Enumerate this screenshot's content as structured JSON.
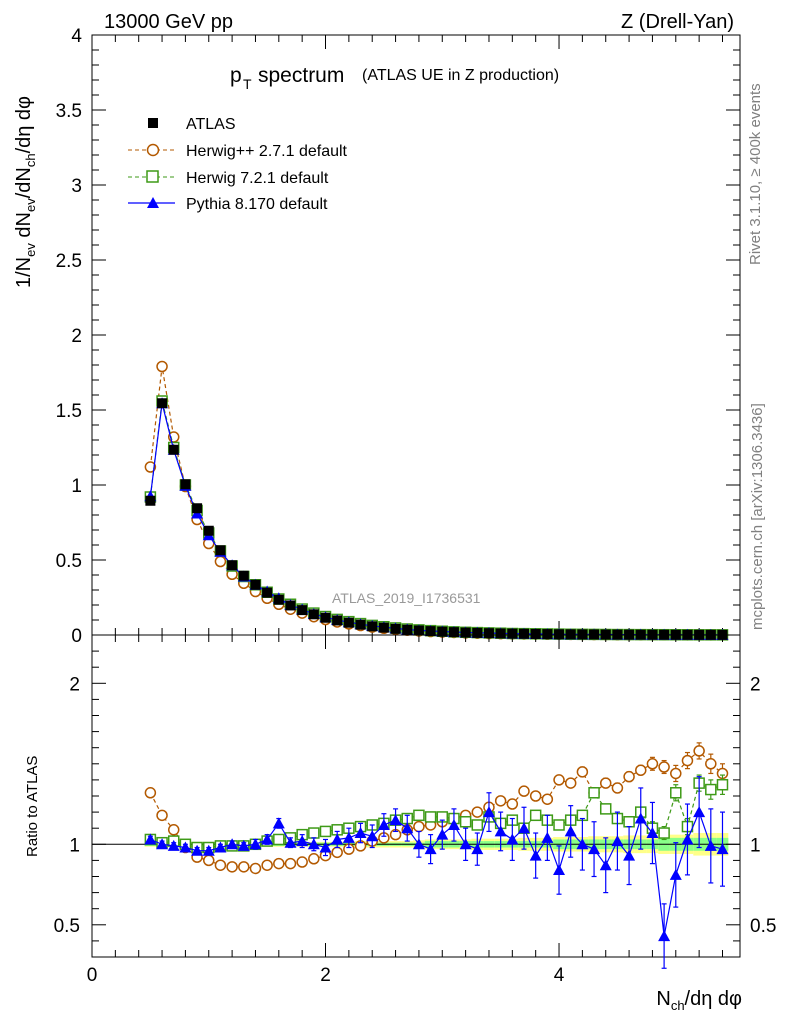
{
  "header": {
    "left": "13000 GeV pp",
    "right": "Z (Drell-Yan)"
  },
  "side_labels": {
    "rivet": "Rivet 3.1.10, ≥ 400k events",
    "mcplots": "mcplots.cern.ch [arXiv:1306.3436]"
  },
  "colors": {
    "atlas": "#000000",
    "herwigpp": "#b35900",
    "herwig7": "#3e9a17",
    "pythia": "#0000ff",
    "band_inner": "#88ff88",
    "band_outer": "#ffff88"
  },
  "chart_data": [
    {
      "type": "scatter",
      "title_main": "p",
      "title_sub": "T",
      "title_word": "spectrum",
      "title_extra": "(ATLAS UE in Z production)",
      "ylabel": "1/N_ev dN_ev/dN_ch/dη dφ",
      "ylabel_parts": [
        "1/N",
        "ev",
        " dN",
        "ev",
        "/dN",
        "ch",
        "/dη dφ"
      ],
      "watermark": "ATLAS_2019_I1736531",
      "xlim": [
        0,
        5.55
      ],
      "ylim": [
        0,
        4
      ],
      "y_ticks": [
        "0",
        "0.5",
        "1",
        "1.5",
        "2",
        "2.5",
        "3",
        "3.5",
        "4"
      ],
      "x_ticks": [],
      "legend_position": "top-left",
      "x": [
        0.5,
        0.6,
        0.7,
        0.8,
        0.9,
        1.0,
        1.1,
        1.2,
        1.3,
        1.4,
        1.5,
        1.6,
        1.7,
        1.8,
        1.9,
        2.0,
        2.1,
        2.2,
        2.3,
        2.4,
        2.5,
        2.6,
        2.7,
        2.8,
        2.9,
        3.0,
        3.1,
        3.2,
        3.3,
        3.4,
        3.5,
        3.6,
        3.7,
        3.8,
        3.9,
        4.0,
        4.1,
        4.2,
        4.3,
        4.4,
        4.5,
        4.6,
        4.7,
        4.8,
        4.9,
        5.0,
        5.1,
        5.2,
        5.3,
        5.4
      ],
      "series": [
        {
          "name": "ATLAS",
          "marker": "square-filled",
          "values": [
            0.895,
            1.545,
            1.235,
            1.005,
            0.845,
            0.695,
            0.565,
            0.465,
            0.395,
            0.335,
            0.282,
            0.235,
            0.197,
            0.166,
            0.138,
            0.115,
            0.097,
            0.082,
            0.069,
            0.058,
            0.049,
            0.041,
            0.035,
            0.03,
            0.026,
            0.022,
            0.019,
            0.016,
            0.014,
            0.012,
            0.01,
            0.009,
            0.008,
            0.007,
            0.006,
            0.005,
            0.0045,
            0.004,
            0.0035,
            0.003,
            0.0027,
            0.0024,
            0.0021,
            0.0019,
            0.0017,
            0.0015,
            0.0013,
            0.0012,
            0.0011,
            0.001
          ]
        },
        {
          "name": "Herwig++ 2.7.1 default",
          "marker": "circle-open",
          "line": "dashed",
          "values": [
            1.12,
            1.79,
            1.32,
            0.99,
            0.77,
            0.61,
            0.49,
            0.405,
            0.345,
            0.29,
            0.245,
            0.205,
            0.172,
            0.146,
            0.122,
            0.103,
            0.087,
            0.074,
            0.063,
            0.053,
            0.045,
            0.038,
            0.032,
            0.027,
            0.023,
            0.02,
            0.017,
            0.014,
            0.012,
            0.01,
            0.009,
            0.008,
            0.007,
            0.006,
            0.005,
            0.0045,
            0.004,
            0.0035,
            0.003,
            0.0027,
            0.0024,
            0.0021,
            0.0019,
            0.0017,
            0.0015,
            0.0013,
            0.0012,
            0.0011,
            0.001,
            0.0009
          ]
        },
        {
          "name": "Herwig 7.2.1 default",
          "marker": "square-open",
          "line": "dashed",
          "values": [
            0.92,
            1.56,
            1.25,
            1.0,
            0.83,
            0.68,
            0.56,
            0.46,
            0.39,
            0.335,
            0.285,
            0.24,
            0.205,
            0.173,
            0.146,
            0.123,
            0.104,
            0.089,
            0.076,
            0.064,
            0.055,
            0.047,
            0.04,
            0.034,
            0.029,
            0.025,
            0.021,
            0.018,
            0.016,
            0.014,
            0.012,
            0.01,
            0.009,
            0.008,
            0.007,
            0.006,
            0.005,
            0.0045,
            0.004,
            0.0035,
            0.003,
            0.0027,
            0.0024,
            0.0021,
            0.0019,
            0.0017,
            0.0015,
            0.0013,
            0.0012,
            0.0011
          ]
        },
        {
          "name": "Pythia 8.170 default",
          "marker": "triangle-filled",
          "line": "solid",
          "values": [
            0.925,
            1.545,
            1.235,
            0.995,
            0.81,
            0.665,
            0.555,
            0.465,
            0.39,
            0.335,
            0.29,
            0.245,
            0.2,
            0.17,
            0.14,
            0.118,
            0.1,
            0.085,
            0.072,
            0.061,
            0.052,
            0.044,
            0.037,
            0.031,
            0.027,
            0.023,
            0.02,
            0.017,
            0.015,
            0.013,
            0.011,
            0.009,
            0.008,
            0.007,
            0.006,
            0.005,
            0.0045,
            0.004,
            0.0035,
            0.003,
            0.0027,
            0.0024,
            0.0021,
            0.0019,
            0.0017,
            0.0015,
            0.0013,
            0.0012,
            0.0011,
            0.001
          ]
        }
      ]
    },
    {
      "type": "scatter",
      "ylabel": "Ratio to ATLAS",
      "xlabel_parts": [
        "N",
        "ch",
        "/dη dφ"
      ],
      "xlim": [
        0,
        5.55
      ],
      "ylim": [
        0.3,
        2.3
      ],
      "x_ticks": [
        "0",
        "2",
        "4"
      ],
      "x_tick_values": [
        0,
        2,
        4
      ],
      "y_ticks": [
        "0.5",
        "1",
        "2"
      ],
      "y_tick_values": [
        0.5,
        1,
        2
      ],
      "x": [
        0.5,
        0.6,
        0.7,
        0.8,
        0.9,
        1.0,
        1.1,
        1.2,
        1.3,
        1.4,
        1.5,
        1.6,
        1.7,
        1.8,
        1.9,
        2.0,
        2.1,
        2.2,
        2.3,
        2.4,
        2.5,
        2.6,
        2.7,
        2.8,
        2.9,
        3.0,
        3.1,
        3.2,
        3.3,
        3.4,
        3.5,
        3.6,
        3.7,
        3.8,
        3.9,
        4.0,
        4.1,
        4.2,
        4.3,
        4.4,
        4.5,
        4.6,
        4.7,
        4.8,
        4.9,
        5.0,
        5.1,
        5.2,
        5.3,
        5.4
      ],
      "band_inner": [
        0.01,
        0.01,
        0.01,
        0.01,
        0.01,
        0.01,
        0.01,
        0.01,
        0.01,
        0.01,
        0.01,
        0.01,
        0.01,
        0.01,
        0.01,
        0.01,
        0.01,
        0.01,
        0.01,
        0.01,
        0.01,
        0.01,
        0.01,
        0.01,
        0.02,
        0.02,
        0.02,
        0.02,
        0.02,
        0.02,
        0.02,
        0.02,
        0.02,
        0.02,
        0.02,
        0.03,
        0.03,
        0.03,
        0.03,
        0.03,
        0.03,
        0.03,
        0.03,
        0.03,
        0.04,
        0.04,
        0.04,
        0.04,
        0.04,
        0.04
      ],
      "band_outer": [
        0.015,
        0.015,
        0.015,
        0.015,
        0.015,
        0.015,
        0.015,
        0.015,
        0.015,
        0.015,
        0.015,
        0.015,
        0.015,
        0.015,
        0.015,
        0.015,
        0.015,
        0.015,
        0.02,
        0.02,
        0.02,
        0.02,
        0.02,
        0.025,
        0.03,
        0.03,
        0.03,
        0.03,
        0.035,
        0.035,
        0.035,
        0.035,
        0.04,
        0.04,
        0.04,
        0.045,
        0.045,
        0.045,
        0.05,
        0.05,
        0.05,
        0.055,
        0.055,
        0.055,
        0.06,
        0.06,
        0.06,
        0.07,
        0.07,
        0.07
      ],
      "series": [
        {
          "name": "Herwig++ 2.7.1 default",
          "marker": "circle-open",
          "line": "dashed",
          "values": [
            1.32,
            1.18,
            1.09,
            0.98,
            0.92,
            0.9,
            0.87,
            0.86,
            0.86,
            0.85,
            0.87,
            0.88,
            0.88,
            0.89,
            0.91,
            0.93,
            0.95,
            0.97,
            0.99,
            1.02,
            1.04,
            1.06,
            1.09,
            1.11,
            1.12,
            1.14,
            1.16,
            1.18,
            1.2,
            1.23,
            1.27,
            1.25,
            1.33,
            1.3,
            1.28,
            1.4,
            1.38,
            1.45,
            1.32,
            1.38,
            1.35,
            1.42,
            1.46,
            1.5,
            1.48,
            1.44,
            1.52,
            1.58,
            1.5,
            1.44
          ],
          "errors": [
            0.01,
            0.01,
            0.01,
            0.01,
            0.01,
            0.01,
            0.01,
            0.01,
            0.01,
            0.01,
            0.01,
            0.01,
            0.01,
            0.01,
            0.01,
            0.01,
            0.01,
            0.01,
            0.01,
            0.01,
            0.01,
            0.01,
            0.01,
            0.01,
            0.01,
            0.01,
            0.01,
            0.01,
            0.02,
            0.02,
            0.02,
            0.02,
            0.02,
            0.02,
            0.02,
            0.02,
            0.02,
            0.03,
            0.03,
            0.03,
            0.03,
            0.03,
            0.03,
            0.04,
            0.04,
            0.05,
            0.05,
            0.05,
            0.06,
            0.06
          ]
        },
        {
          "name": "Herwig 7.2.1 default",
          "marker": "square-open",
          "line": "dashed",
          "values": [
            1.03,
            1.01,
            1.02,
            1.0,
            0.98,
            0.98,
            0.99,
            0.99,
            0.99,
            1.0,
            1.02,
            1.03,
            1.04,
            1.06,
            1.07,
            1.08,
            1.09,
            1.1,
            1.11,
            1.12,
            1.13,
            1.15,
            1.16,
            1.18,
            1.17,
            1.17,
            1.16,
            1.14,
            1.12,
            1.17,
            1.13,
            1.15,
            1.1,
            1.18,
            1.15,
            1.12,
            1.15,
            1.18,
            1.32,
            1.22,
            1.16,
            1.14,
            1.2,
            1.1,
            1.07,
            1.32,
            1.11,
            1.38,
            1.34,
            1.37
          ],
          "errors": [
            0.01,
            0.01,
            0.01,
            0.01,
            0.01,
            0.01,
            0.01,
            0.01,
            0.01,
            0.01,
            0.01,
            0.01,
            0.01,
            0.01,
            0.01,
            0.01,
            0.01,
            0.01,
            0.01,
            0.01,
            0.01,
            0.01,
            0.01,
            0.01,
            0.01,
            0.01,
            0.01,
            0.02,
            0.02,
            0.02,
            0.02,
            0.02,
            0.02,
            0.02,
            0.02,
            0.02,
            0.02,
            0.03,
            0.03,
            0.03,
            0.03,
            0.03,
            0.03,
            0.04,
            0.04,
            0.05,
            0.05,
            0.05,
            0.06,
            0.06
          ]
        },
        {
          "name": "Pythia 8.170 default",
          "marker": "triangle-filled",
          "line": "solid",
          "values": [
            1.03,
            1.0,
            0.99,
            0.98,
            0.96,
            0.96,
            0.98,
            1.0,
            0.99,
            1.0,
            1.03,
            1.13,
            1.01,
            1.02,
            1.0,
            0.98,
            1.03,
            1.04,
            1.07,
            1.05,
            1.12,
            1.15,
            1.1,
            1.0,
            0.97,
            1.06,
            1.12,
            1.0,
            0.97,
            1.2,
            1.08,
            1.03,
            1.1,
            0.93,
            1.04,
            0.84,
            1.08,
            1.0,
            0.97,
            0.87,
            1.02,
            0.93,
            1.16,
            1.07,
            0.43,
            0.81,
            1.03,
            1.2,
            0.99,
            0.97
          ],
          "errors": [
            0.02,
            0.02,
            0.02,
            0.02,
            0.02,
            0.02,
            0.02,
            0.02,
            0.02,
            0.03,
            0.03,
            0.03,
            0.03,
            0.04,
            0.04,
            0.05,
            0.05,
            0.06,
            0.06,
            0.07,
            0.07,
            0.07,
            0.08,
            0.08,
            0.09,
            0.09,
            0.1,
            0.1,
            0.1,
            0.12,
            0.12,
            0.13,
            0.13,
            0.14,
            0.14,
            0.15,
            0.16,
            0.16,
            0.17,
            0.17,
            0.18,
            0.18,
            0.19,
            0.19,
            0.2,
            0.2,
            0.22,
            0.22,
            0.23,
            0.23
          ]
        }
      ]
    }
  ]
}
